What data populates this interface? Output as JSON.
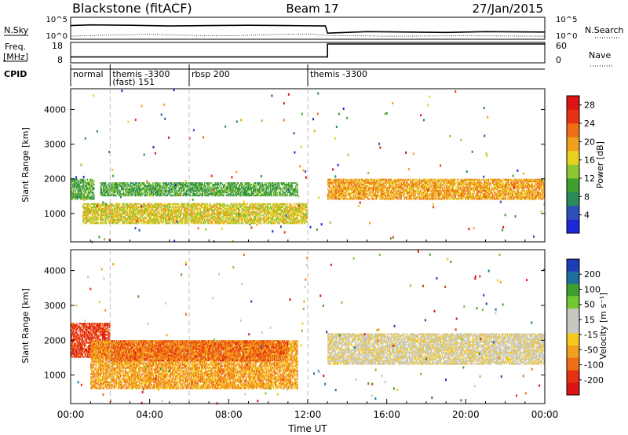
{
  "header": {
    "station": "Blackstone (fitACF)",
    "beam": "Beam 17",
    "date": "27/Jan/2015"
  },
  "left_labels": {
    "nsky": "N.Sky",
    "freq_line1": "Freq.",
    "freq_line2": "[MHz]",
    "cpid": "CPID"
  },
  "right_labels": {
    "nsearch": "N.Search",
    "nave": "Nave"
  },
  "cpid_segments": [
    {
      "start_hour": 0.0,
      "lines": [
        "normal"
      ]
    },
    {
      "start_hour": 2.0,
      "lines": [
        "themis -3300",
        "(fast) 151"
      ]
    },
    {
      "start_hour": 6.0,
      "lines": [
        "rbsp 200"
      ]
    },
    {
      "start_hour": 12.0,
      "lines": [
        "themis -3300"
      ]
    }
  ],
  "colors": {
    "power": [
      "#1e27d8",
      "#2f4fb8",
      "#2a8a5a",
      "#3f9f2e",
      "#8cc832",
      "#e6d21e",
      "#f0a01e",
      "#f06e14",
      "#e63214",
      "#dc1414"
    ],
    "velocity": [
      "#dc1414",
      "#e63214",
      "#f06e14",
      "#f0a01e",
      "#f5c81e",
      "#c8c8c0",
      "#c8c8c0",
      "#6ec832",
      "#3f9f2e",
      "#1e6ea0",
      "#1e3cb4"
    ]
  },
  "chart_data": [
    {
      "type": "line",
      "name": "N.Sky / N.Search noise",
      "yticks": [
        "10^5",
        "10^0"
      ],
      "yticks_right": [
        "10^5",
        "10^0"
      ],
      "series": [
        {
          "name": "N.Sky",
          "x": [
            0,
            1,
            3,
            5,
            7,
            9,
            11,
            12.9,
            13.0,
            15,
            17,
            19,
            21,
            24
          ],
          "y": [
            3.2,
            3.4,
            3.3,
            3.1,
            3.2,
            3.3,
            3.2,
            3.1,
            1.2,
            1.6,
            1.5,
            1.4,
            1.6,
            1.5
          ]
        },
        {
          "name": "N.Search",
          "x": [
            0,
            2,
            4,
            6,
            8,
            10,
            12,
            13,
            16,
            20,
            24
          ],
          "y": [
            0.4,
            0.7,
            0.9,
            0.6,
            0.5,
            0.8,
            1.0,
            0.6,
            0.4,
            0.5,
            0.4
          ]
        }
      ],
      "xlim": [
        0,
        24
      ]
    },
    {
      "type": "line",
      "name": "Freq / Nave",
      "yticks": [
        18,
        8
      ],
      "yticks_right": [
        60,
        0
      ],
      "series": [
        {
          "name": "Freq.",
          "x": [
            0,
            13,
            13,
            24
          ],
          "y": [
            10.5,
            10.5,
            18,
            18
          ]
        },
        {
          "name": "Nave",
          "x": [
            0,
            24
          ],
          "y": [
            0,
            0
          ]
        }
      ],
      "xlim": [
        0,
        24
      ]
    },
    {
      "type": "heatmap",
      "name": "Power",
      "ylabel": "Slant Range [km]",
      "yticks": [
        1000,
        2000,
        3000,
        4000
      ],
      "ylim": [
        180,
        4600
      ],
      "colorbar_label": "Power [dB]",
      "colorbar_ticks": [
        4,
        8,
        12,
        16,
        20,
        24,
        28
      ],
      "colorbar_range": [
        0,
        30
      ],
      "bands": [
        {
          "t0": 0,
          "t1": 1.2,
          "r0": 1400,
          "r1": 2000,
          "level": 3
        },
        {
          "t0": 0.6,
          "t1": 12,
          "r0": 700,
          "r1": 1300,
          "level": 5
        },
        {
          "t0": 1.5,
          "t1": 11.5,
          "r0": 1500,
          "r1": 1900,
          "level": 3
        },
        {
          "t0": 13,
          "t1": 24,
          "r0": 1400,
          "r1": 2000,
          "level": 6
        }
      ]
    },
    {
      "type": "heatmap",
      "name": "Velocity",
      "ylabel": "Slant Range [km]",
      "yticks": [
        1000,
        2000,
        3000,
        4000
      ],
      "ylim": [
        180,
        4600
      ],
      "colorbar_label": "Velocity [m s⁻¹]",
      "colorbar_ticks": [
        200,
        100,
        50,
        15,
        -15,
        -50,
        -100,
        -200
      ],
      "bands": [
        {
          "t0": 0,
          "t1": 2,
          "r0": 1500,
          "r1": 2500,
          "level": 1
        },
        {
          "t0": 1.0,
          "t1": 11.5,
          "r0": 600,
          "r1": 2000,
          "level": 3
        },
        {
          "t0": 2,
          "t1": 11,
          "r0": 1400,
          "r1": 2000,
          "level": 2
        },
        {
          "t0": 13,
          "t1": 24,
          "r0": 1300,
          "r1": 2200,
          "level": 5
        }
      ]
    }
  ],
  "x_axis": {
    "ticks": [
      "00:00",
      "04:00",
      "08:00",
      "12:00",
      "16:00",
      "20:00",
      "00:00"
    ],
    "label": "Time UT"
  }
}
